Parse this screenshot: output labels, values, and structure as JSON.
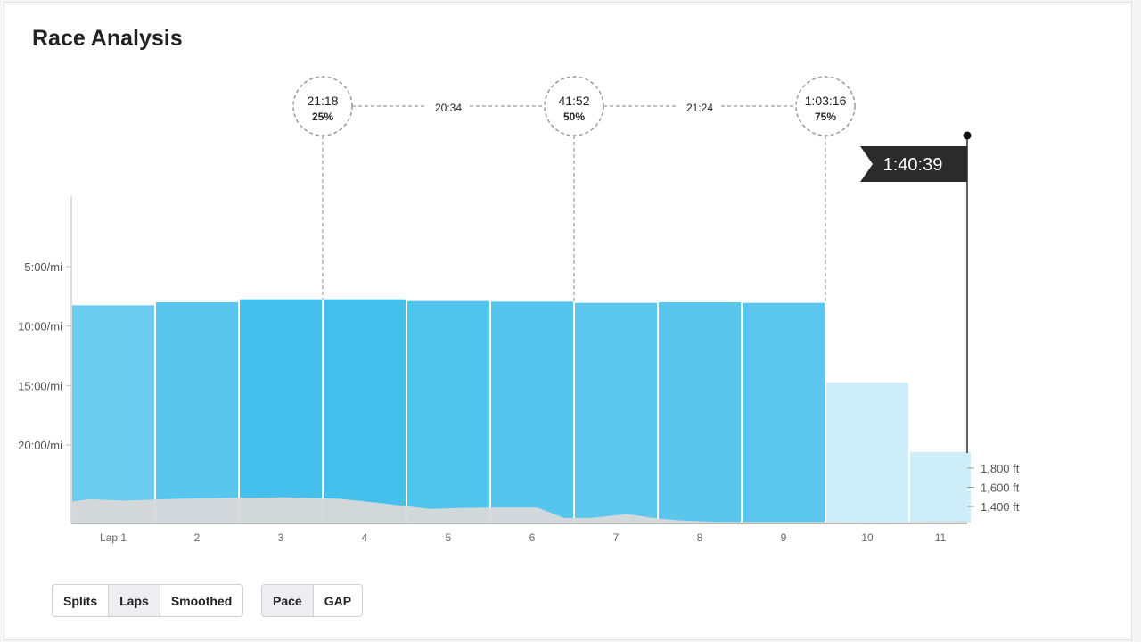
{
  "header": {
    "title": "Race Analysis"
  },
  "controls": {
    "view": [
      {
        "label": "Splits",
        "active": false
      },
      {
        "label": "Laps",
        "active": true
      },
      {
        "label": "Smoothed",
        "active": false
      }
    ],
    "metric": [
      {
        "label": "Pace",
        "active": true
      },
      {
        "label": "GAP",
        "active": false
      }
    ]
  },
  "colors": {
    "bar_fast": "#45c0ec",
    "bar_light": "#cdeef9",
    "elevation": "#d9d9d9",
    "flag": "#2b2b2b"
  },
  "chart_data": {
    "type": "bar",
    "categories": [
      "Lap 1",
      "2",
      "3",
      "4",
      "5",
      "6",
      "7",
      "8",
      "9",
      "10",
      "11"
    ],
    "series": [
      {
        "values": [
          8.25,
          8.0,
          7.75,
          7.75,
          7.9,
          7.95,
          8.05,
          8.0,
          8.05,
          14.75,
          20.6
        ]
      }
    ],
    "pace_unit": "min/mi",
    "y_ticks": [
      {
        "value": 5,
        "label": "5:00/mi"
      },
      {
        "value": 10,
        "label": "10:00/mi"
      },
      {
        "value": 15,
        "label": "15:00/mi"
      },
      {
        "value": 20,
        "label": "20:00/mi"
      }
    ],
    "ylim_top": 0,
    "ylim_bottom": 27.75,
    "y_inverted": true,
    "elevation": {
      "unit": "ft",
      "tick_labels": [
        {
          "value": 1800,
          "label": "1,800 ft"
        },
        {
          "value": 1600,
          "label": "1,600 ft"
        },
        {
          "value": 1400,
          "label": "1,400 ft"
        }
      ],
      "distance_fraction": [
        0,
        0.02,
        0.06,
        0.12,
        0.18,
        0.24,
        0.3,
        0.35,
        0.4,
        0.44,
        0.48,
        0.52,
        0.55,
        0.58,
        0.62,
        0.65,
        0.68,
        0.72,
        0.78,
        0.85,
        0.9,
        0.95,
        1.0
      ],
      "values": [
        1450,
        1475,
        1460,
        1480,
        1490,
        1495,
        1480,
        1430,
        1375,
        1385,
        1390,
        1390,
        1280,
        1280,
        1320,
        1280,
        1255,
        1240,
        1240,
        1240,
        1230,
        1245,
        1250
      ]
    },
    "milestones": [
      {
        "time": "21:18",
        "percent": "25%",
        "lap_index": 2
      },
      {
        "time": "41:52",
        "percent": "50%",
        "lap_index": 5
      },
      {
        "time": "1:03:16",
        "percent": "75%",
        "lap_index": 8
      }
    ],
    "segment_gaps": [
      "20:34",
      "21:24"
    ],
    "finish_time": "1:40:39"
  }
}
